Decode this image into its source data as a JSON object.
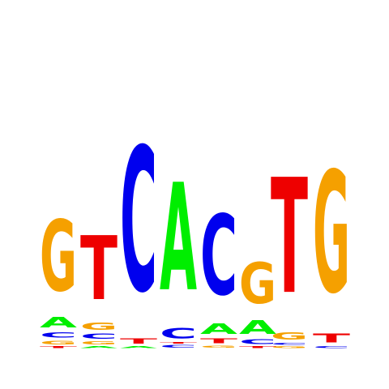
{
  "logo": {
    "colors": {
      "A": "#00ee00",
      "C": "#0000ee",
      "G": "#f5a000",
      "T": "#ee0000"
    },
    "columns": [
      [
        [
          "T",
          0.012
        ],
        [
          "G",
          0.025
        ],
        [
          "C",
          0.035
        ],
        [
          "A",
          0.07
        ],
        [
          "G",
          0.47
        ]
      ],
      [
        [
          "A",
          0.012
        ],
        [
          "G",
          0.02
        ],
        [
          "C",
          0.035
        ],
        [
          "G",
          0.05
        ],
        [
          "T",
          0.42
        ]
      ],
      [
        [
          "A",
          0.012
        ],
        [
          "T",
          0.035
        ],
        [
          "C",
          0.95
        ]
      ],
      [
        [
          "C",
          0.018
        ],
        [
          "T",
          0.01
        ],
        [
          "C",
          0.07
        ],
        [
          "A",
          0.71
        ]
      ],
      [
        [
          "G",
          0.015
        ],
        [
          "T",
          0.03
        ],
        [
          "A",
          0.07
        ],
        [
          "C",
          0.53
        ]
      ],
      [
        [
          "T",
          0.012
        ],
        [
          "C",
          0.03
        ],
        [
          "A",
          0.09
        ],
        [
          "G",
          0.27
        ]
      ],
      [
        [
          "G",
          0.012
        ],
        [
          "C",
          0.015
        ],
        [
          "G",
          0.05
        ],
        [
          "T",
          0.76
        ]
      ],
      [
        [
          "C",
          0.012
        ],
        [
          "T",
          0.06
        ],
        [
          "G",
          0.8
        ]
      ]
    ]
  }
}
